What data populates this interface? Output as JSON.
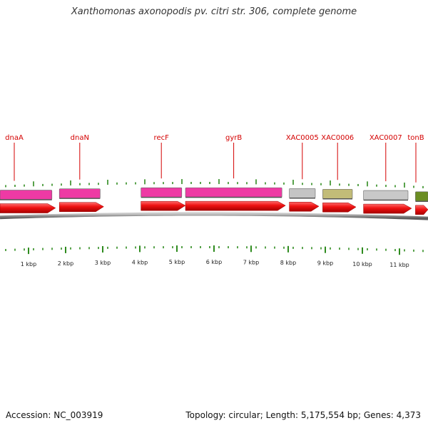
{
  "title": "Xanthomonas axonopodis pv. citri str. 306, complete genome",
  "accession": "Accession: NC_003919",
  "stats": "Topology: circular; Length: 5,175,554 bp; Genes: 4,373",
  "colors": {
    "label": "#d40000",
    "tick": "#2e8b1e",
    "arrow": "#ee1111",
    "backbone": "#8f8f8f"
  },
  "genes": [
    {
      "name": "dnaA",
      "start": 0,
      "end": 1.4,
      "color": "#ee3aa4"
    },
    {
      "name": "dnaN",
      "start": 1.6,
      "end": 2.7,
      "color": "#ee3aa4"
    },
    {
      "name": "recF",
      "start": 3.8,
      "end": 4.9,
      "color": "#ee3aa4"
    },
    {
      "name": "gyrB",
      "start": 5.0,
      "end": 7.6,
      "color": "#ee3aa4"
    },
    {
      "name": "XAC0005",
      "start": 7.8,
      "end": 8.5,
      "color": "#c4c4c4"
    },
    {
      "name": "XAC0006",
      "start": 8.7,
      "end": 9.5,
      "color": "#c2bc78"
    },
    {
      "name": "XAC0007",
      "start": 9.8,
      "end": 11.0,
      "color": "#c8c8c8"
    },
    {
      "name": "tonB",
      "start": 11.2,
      "end": 11.95,
      "color": "#6b8e23"
    }
  ],
  "ticks": [
    "1 kbp",
    "2 kbp",
    "3 kbp",
    "4 kbp",
    "5 kbp",
    "6 kbp",
    "7 kbp",
    "8 kbp",
    "9 kbp",
    "10 kbp",
    "11 kbp"
  ]
}
